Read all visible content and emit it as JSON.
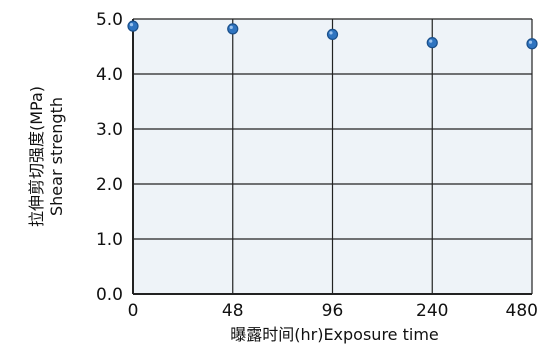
{
  "chart_data": {
    "type": "scatter",
    "title": "",
    "x": [
      "0",
      "48",
      "96",
      "240",
      "480"
    ],
    "y": [
      4.87,
      4.82,
      4.72,
      4.57,
      4.55
    ],
    "xlabel": "曝露时间(hr)Exposure time",
    "ylabel_line1": "拉伸剪切强度(MPa)",
    "ylabel_line2": "Shear strength",
    "xticks": [
      "0",
      "48",
      "96",
      "240",
      "480"
    ],
    "yticks": [
      "0.0",
      "1.0",
      "2.0",
      "3.0",
      "4.0",
      "5.0"
    ],
    "ylim": [
      0,
      5
    ],
    "grid": true,
    "colors": {
      "plot_background": "#eef3f8",
      "grid": "#222222",
      "marker": "#2f74c0",
      "marker_edge": "#1a4f8a"
    }
  }
}
